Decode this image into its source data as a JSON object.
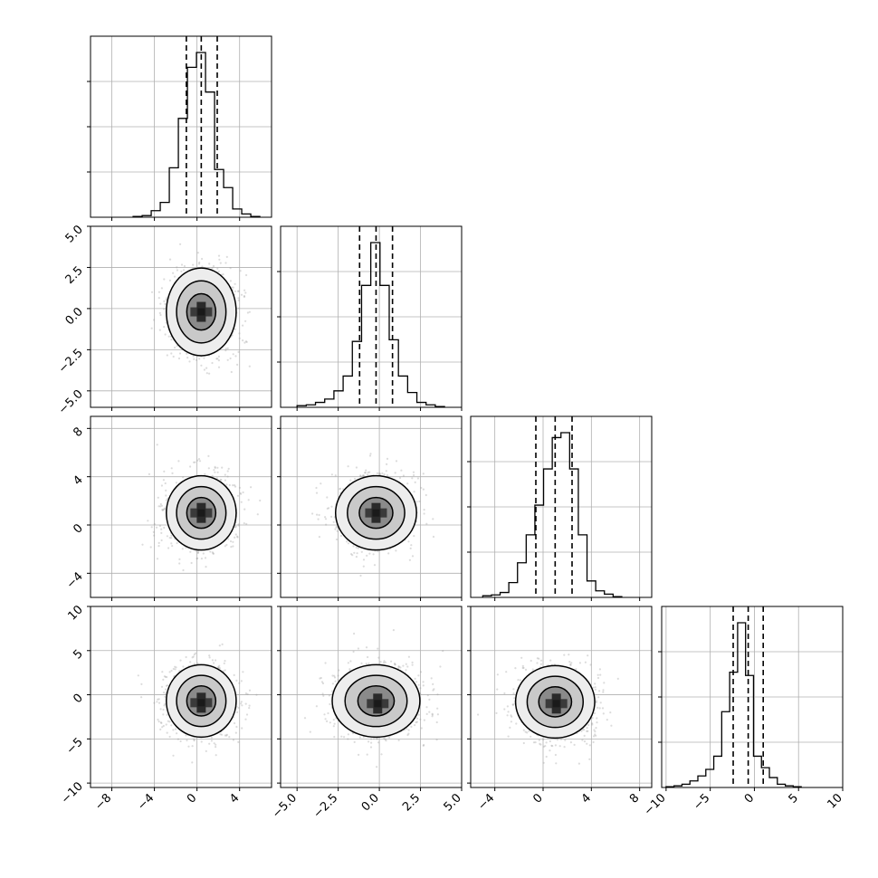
{
  "chart_data": {
    "type": "corner",
    "n_params": 4,
    "grid": true,
    "colors": {
      "line": "#000000",
      "grid": "#b0b0b0",
      "scatter": "#9a9a9a",
      "fill_levels": [
        "#ededed",
        "#c9c9c9",
        "#8a8a8a",
        "#1a1a1a"
      ]
    },
    "params": [
      {
        "index": 0,
        "range": [
          -10,
          7
        ],
        "ticks": [
          -8,
          -4,
          0,
          4
        ],
        "tick_labels": [
          "−8",
          "−4",
          "0",
          "4"
        ],
        "quantiles": [
          -1.0,
          0.4,
          1.9
        ],
        "hist": {
          "edges_start": -6.0,
          "bin_width": 0.85,
          "heights": [
            0.005,
            0.01,
            0.04,
            0.09,
            0.3,
            0.6,
            0.91,
            1.0,
            0.76,
            0.29,
            0.18,
            0.05,
            0.02,
            0.005
          ]
        }
      },
      {
        "index": 1,
        "range": [
          -6,
          5
        ],
        "ticks": [
          -5.0,
          -2.5,
          0.0,
          2.5,
          5.0
        ],
        "tick_labels": [
          "−5.0",
          "−2.5",
          "0.0",
          "2.5",
          "5.0"
        ],
        "quantiles": [
          -1.2,
          -0.2,
          0.8
        ],
        "hist": {
          "edges_start": -5.0,
          "bin_width": 0.56,
          "heights": [
            0.01,
            0.015,
            0.03,
            0.05,
            0.1,
            0.19,
            0.4,
            0.74,
            1.0,
            0.74,
            0.41,
            0.19,
            0.09,
            0.03,
            0.015,
            0.005
          ]
        }
      },
      {
        "index": 2,
        "range": [
          -6,
          9
        ],
        "ticks": [
          -4,
          0,
          4,
          8
        ],
        "tick_labels": [
          "−4",
          "0",
          "4",
          "8"
        ],
        "quantiles": [
          -0.6,
          1.0,
          2.4
        ],
        "hist": {
          "edges_start": -5.0,
          "bin_width": 0.72,
          "heights": [
            0.01,
            0.015,
            0.03,
            0.09,
            0.21,
            0.38,
            0.56,
            0.78,
            0.97,
            1.0,
            0.78,
            0.38,
            0.1,
            0.04,
            0.02,
            0.005
          ]
        }
      },
      {
        "index": 3,
        "range": [
          -10.5,
          10
        ],
        "ticks": [
          -10,
          -5,
          0,
          5,
          10
        ],
        "tick_labels": [
          "−10",
          "−5",
          "0",
          "5",
          "10"
        ],
        "quantiles": [
          -2.4,
          -0.7,
          1.0
        ],
        "hist": {
          "edges_start": -10.0,
          "bin_width": 0.9,
          "heights": [
            0.005,
            0.01,
            0.02,
            0.04,
            0.07,
            0.11,
            0.19,
            0.46,
            0.7,
            1.0,
            0.68,
            0.19,
            0.12,
            0.06,
            0.02,
            0.01,
            0.005
          ]
        }
      }
    ],
    "panels_2d": [
      {
        "x_param": 0,
        "y_param": 1,
        "center": [
          0.4,
          -0.2
        ],
        "sigma": [
          1.6,
          1.3
        ],
        "peak": [
          0.4,
          -0.2
        ]
      },
      {
        "x_param": 0,
        "y_param": 2,
        "center": [
          0.4,
          1.0
        ],
        "sigma": [
          1.6,
          1.5
        ],
        "peak": [
          0.4,
          1.0
        ]
      },
      {
        "x_param": 1,
        "y_param": 2,
        "center": [
          -0.2,
          1.0
        ],
        "sigma": [
          1.2,
          1.5
        ],
        "peak": [
          -0.2,
          1.0
        ]
      },
      {
        "x_param": 0,
        "y_param": 3,
        "center": [
          0.4,
          -0.7
        ],
        "sigma": [
          1.6,
          2.0
        ],
        "peak": [
          0.4,
          -0.9
        ]
      },
      {
        "x_param": 1,
        "y_param": 3,
        "center": [
          -0.2,
          -0.7
        ],
        "sigma": [
          1.3,
          2.0
        ],
        "peak": [
          -0.1,
          -1.0
        ]
      },
      {
        "x_param": 2,
        "y_param": 3,
        "center": [
          1.0,
          -0.8
        ],
        "sigma": [
          1.6,
          2.0
        ],
        "peak": [
          1.1,
          -1.0
        ]
      }
    ]
  }
}
